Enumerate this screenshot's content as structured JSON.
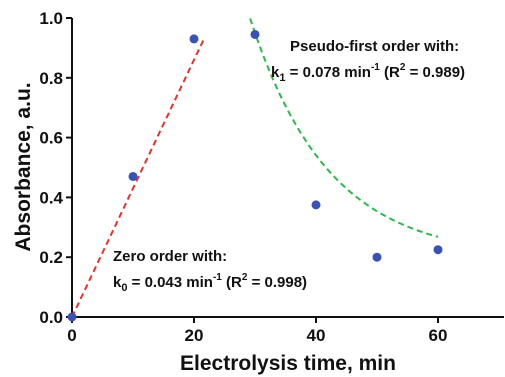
{
  "chart_data": {
    "type": "scatter",
    "xlabel": "Electrolysis time, min",
    "ylabel": "Absorbance, a.u.",
    "xlim": [
      0,
      70
    ],
    "ylim": [
      0.0,
      1.0
    ],
    "x_ticks": [
      0,
      20,
      40,
      60
    ],
    "x_tick_labels": [
      "0",
      "20",
      "40",
      "60"
    ],
    "y_ticks": [
      0.0,
      0.2,
      0.4,
      0.6,
      0.8,
      1.0
    ],
    "y_tick_labels": [
      "0.0",
      "0.2",
      "0.4",
      "0.6",
      "0.8",
      "1.0"
    ],
    "grid": false,
    "series": [
      {
        "x": [
          0,
          10,
          20,
          30,
          40,
          50,
          60
        ],
        "y": [
          0.0,
          0.47,
          0.93,
          0.945,
          0.375,
          0.2,
          0.225
        ],
        "color": "#3a52b4",
        "marker": "circle"
      }
    ],
    "fits": [
      {
        "model": "zero order",
        "x_range": [
          0,
          21.5
        ],
        "slope": 0.043,
        "intercept": 0.0,
        "color": "#e8312b",
        "style": "dashed"
      },
      {
        "model": "pseudo-first order",
        "x_range": [
          29.2,
          60
        ],
        "k": 0.078,
        "x0": 30,
        "y0": 0.95,
        "plateau": 0.195,
        "color": "#2db84a",
        "style": "dashed"
      }
    ],
    "annotations": {
      "zero_title": "Zero order with:",
      "zero_rate": {
        "k": "k",
        "sub": "0",
        "eq": " = 0.043 min",
        "exp": "-1",
        "r": " (R",
        "r_exp": "2",
        "r_val": " = 0.998)"
      },
      "first_title": "Pseudo-first order with:",
      "first_rate": {
        "k": "k",
        "sub": "1",
        "eq": " = 0.078 min",
        "exp": "-1",
        "r": " (R",
        "r_exp": "2",
        "r_val": " = 0.989)"
      }
    }
  }
}
